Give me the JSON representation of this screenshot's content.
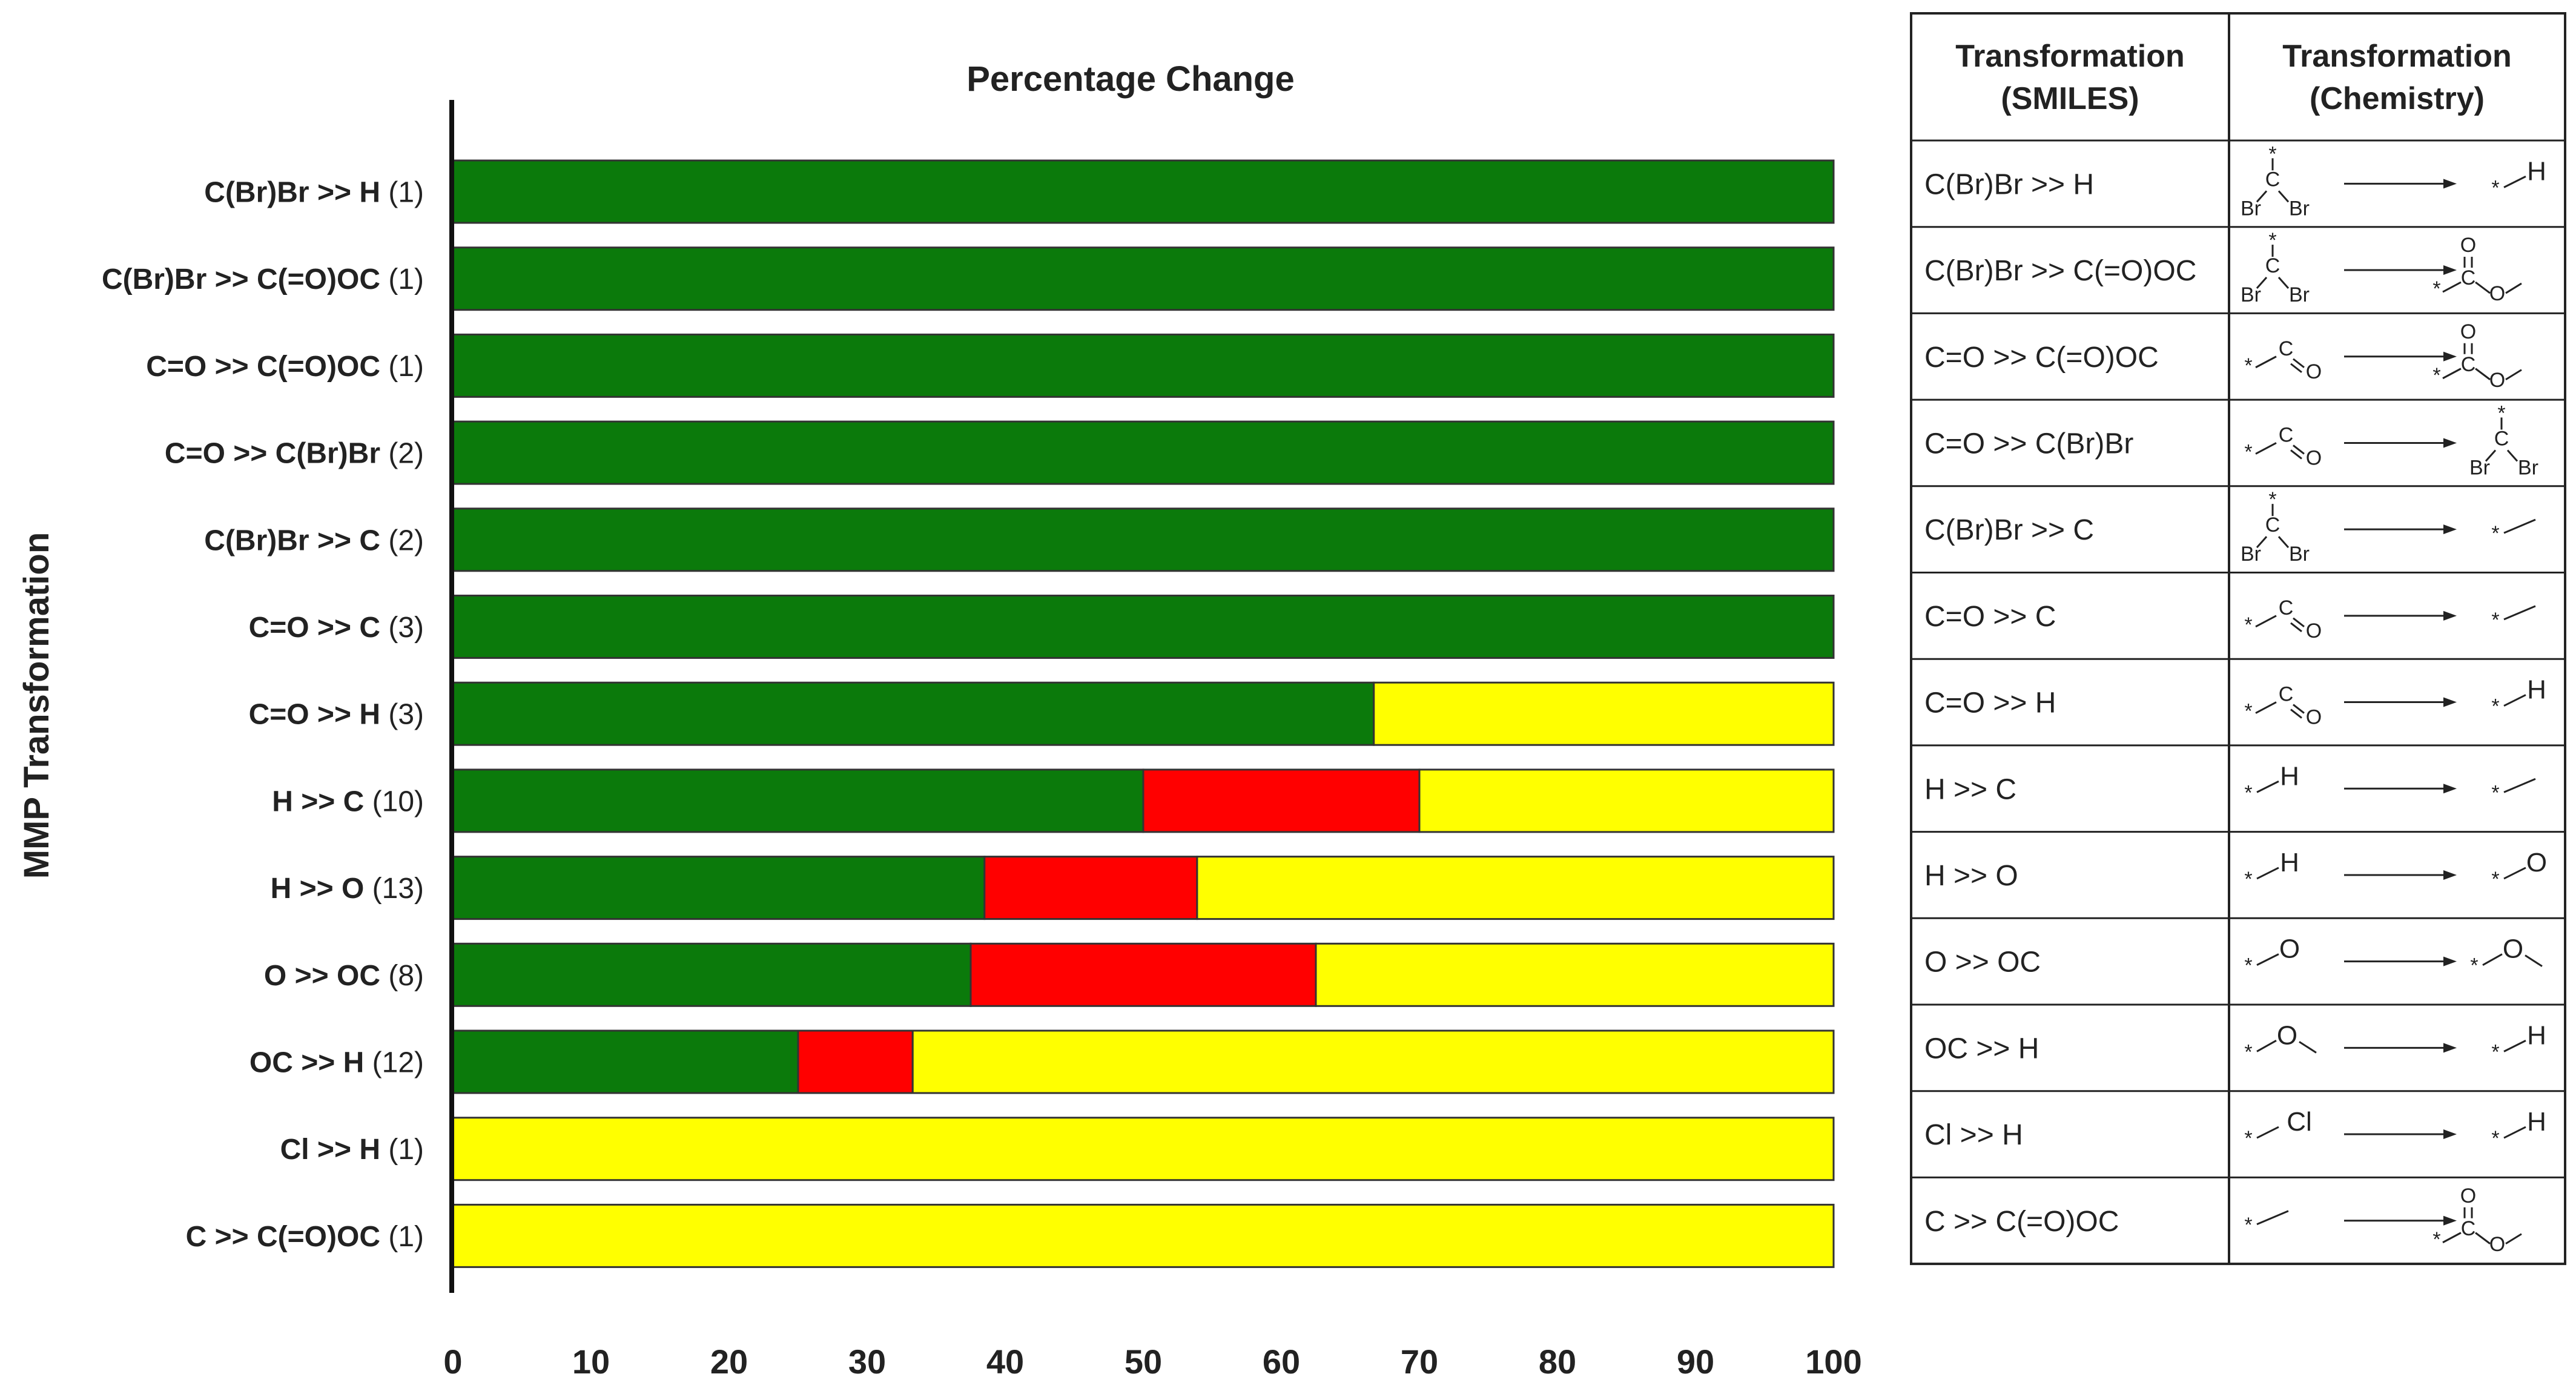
{
  "chart_data": {
    "type": "bar",
    "stacked": true,
    "orientation": "horizontal",
    "title": "Percentage Change",
    "xlabel": "",
    "ylabel": "MMP Transformation",
    "xlim": [
      0,
      100
    ],
    "x_ticks": [
      0,
      10,
      20,
      30,
      40,
      50,
      60,
      70,
      80,
      90,
      100
    ],
    "grid": false,
    "legend": "none",
    "categories": [
      {
        "name": "C(Br)Br >> H",
        "count": "(1)"
      },
      {
        "name": "C(Br)Br >> C(=O)OC",
        "count": "(1)"
      },
      {
        "name": "C=O >> C(=O)OC",
        "count": "(1)"
      },
      {
        "name": "C=O >> C(Br)Br",
        "count": "(2)"
      },
      {
        "name": "C(Br)Br >> C",
        "count": "(2)"
      },
      {
        "name": "C=O >> C",
        "count": "(3)"
      },
      {
        "name": "C=O >> H",
        "count": "(3)"
      },
      {
        "name": "H >> C",
        "count": "(10)"
      },
      {
        "name": "H >> O",
        "count": "(13)"
      },
      {
        "name": "O >> OC",
        "count": "(8)"
      },
      {
        "name": "OC >> H",
        "count": "(12)"
      },
      {
        "name": "Cl >> H",
        "count": "(1)"
      },
      {
        "name": "C >> C(=O)OC",
        "count": "(1)"
      }
    ],
    "series": [
      {
        "color": "#0b7a0b",
        "values": [
          100,
          100,
          100,
          100,
          100,
          100,
          66.7,
          50,
          38.5,
          37.5,
          25,
          0,
          0
        ]
      },
      {
        "color": "#ff0000",
        "values": [
          0,
          0,
          0,
          0,
          0,
          0,
          0,
          20,
          15.4,
          25,
          8.3,
          0,
          0
        ]
      },
      {
        "color": "#ffff00",
        "values": [
          0,
          0,
          0,
          0,
          0,
          0,
          33.3,
          30,
          46.1,
          37.5,
          66.7,
          100,
          100
        ]
      }
    ]
  },
  "table": {
    "headers": [
      [
        "Transformation",
        "(SMILES)"
      ],
      [
        "Transformation",
        "(Chemistry)"
      ]
    ],
    "rows": [
      {
        "smiles": "C(Br)Br >> H",
        "lhs": "cbr2",
        "rhs": "h"
      },
      {
        "smiles": "C(Br)Br >> C(=O)OC",
        "lhs": "cbr2",
        "rhs": "ester"
      },
      {
        "smiles": "C=O >> C(=O)OC",
        "lhs": "co",
        "rhs": "ester"
      },
      {
        "smiles": "C=O >> C(Br)Br",
        "lhs": "co",
        "rhs": "cbr2"
      },
      {
        "smiles": "C(Br)Br >> C",
        "lhs": "cbr2",
        "rhs": "c"
      },
      {
        "smiles": "C=O >> C",
        "lhs": "co",
        "rhs": "c"
      },
      {
        "smiles": "C=O >> H",
        "lhs": "co",
        "rhs": "h"
      },
      {
        "smiles": "H >> C",
        "lhs": "h",
        "rhs": "c"
      },
      {
        "smiles": "H >> O",
        "lhs": "h",
        "rhs": "o"
      },
      {
        "smiles": "O >> OC",
        "lhs": "o",
        "rhs": "oc"
      },
      {
        "smiles": "OC >> H",
        "lhs": "oc",
        "rhs": "h"
      },
      {
        "smiles": "Cl >> H",
        "lhs": "cl",
        "rhs": "h"
      },
      {
        "smiles": "C >> C(=O)OC",
        "lhs": "c",
        "rhs": "ester"
      }
    ]
  }
}
